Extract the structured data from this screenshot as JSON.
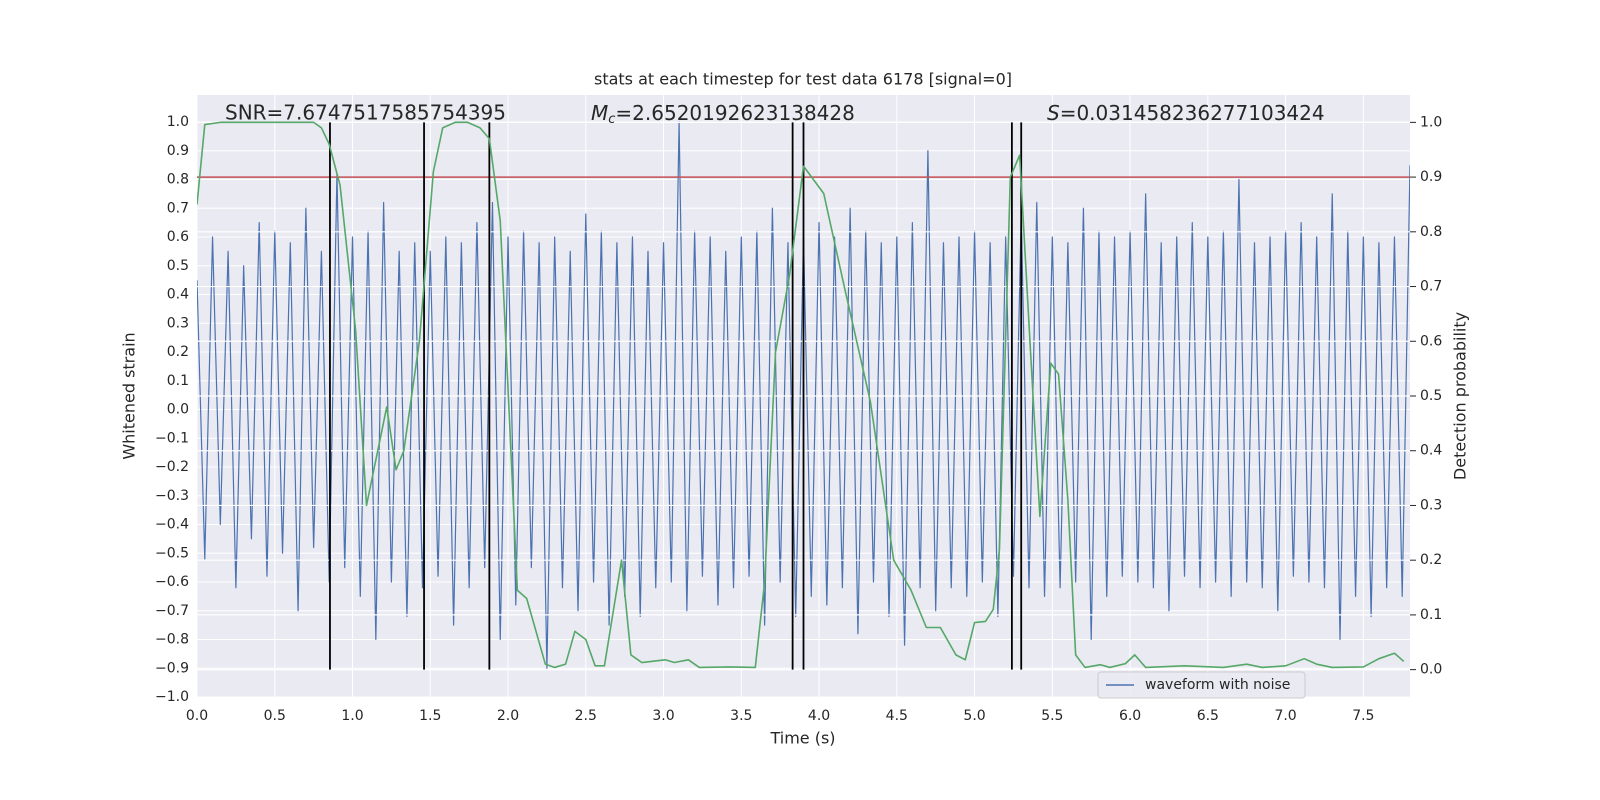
{
  "chart_data": {
    "type": "line",
    "title": "stats at each timestep for test data 6178 [signal=0]",
    "xlabel": "Time (s)",
    "ylabel": "Whitened strain",
    "y2label": "Detection probability",
    "annotations": [
      {
        "text": "SNR=7.6747517585754395"
      },
      {
        "symbol": "M",
        "subscript": "c",
        "text": "=2.6520192623138428"
      },
      {
        "symbol": "S",
        "text": "=0.031458236277103424"
      }
    ],
    "xlim": [
      0,
      7.8
    ],
    "ylim": [
      -1.0,
      1.094
    ],
    "y2lim": [
      -0.05,
      1.05
    ],
    "xticks": [
      {
        "value": 0,
        "label": "0.0"
      },
      {
        "value": 0.5,
        "label": "0.5"
      },
      {
        "value": 1,
        "label": "1.0"
      },
      {
        "value": 1.5,
        "label": "1.5"
      },
      {
        "value": 2,
        "label": "2.0"
      },
      {
        "value": 2.5,
        "label": "2.5"
      },
      {
        "value": 3,
        "label": "3.0"
      },
      {
        "value": 3.5,
        "label": "3.5"
      },
      {
        "value": 4,
        "label": "4.0"
      },
      {
        "value": 4.5,
        "label": "4.5"
      },
      {
        "value": 5,
        "label": "5.0"
      },
      {
        "value": 5.5,
        "label": "5.5"
      },
      {
        "value": 6,
        "label": "6.0"
      },
      {
        "value": 6.5,
        "label": "6.5"
      },
      {
        "value": 7,
        "label": "7.0"
      },
      {
        "value": 7.5,
        "label": "7.5"
      }
    ],
    "yticks": [
      {
        "value": -1,
        "label": "−1.0"
      },
      {
        "value": -0.9,
        "label": "−0.9"
      },
      {
        "value": -0.8,
        "label": "−0.8"
      },
      {
        "value": -0.7,
        "label": "−0.7"
      },
      {
        "value": -0.6,
        "label": "−0.6"
      },
      {
        "value": -0.5,
        "label": "−0.5"
      },
      {
        "value": -0.4,
        "label": "−0.4"
      },
      {
        "value": -0.3,
        "label": "−0.3"
      },
      {
        "value": -0.2,
        "label": "−0.2"
      },
      {
        "value": -0.1,
        "label": "−0.1"
      },
      {
        "value": 0,
        "label": "0.0"
      },
      {
        "value": 0.1,
        "label": "0.1"
      },
      {
        "value": 0.2,
        "label": "0.2"
      },
      {
        "value": 0.3,
        "label": "0.3"
      },
      {
        "value": 0.4,
        "label": "0.4"
      },
      {
        "value": 0.5,
        "label": "0.5"
      },
      {
        "value": 0.6,
        "label": "0.6"
      },
      {
        "value": 0.7,
        "label": "0.7"
      },
      {
        "value": 0.8,
        "label": "0.8"
      },
      {
        "value": 0.9,
        "label": "0.9"
      },
      {
        "value": 1,
        "label": "1.0"
      }
    ],
    "y2ticks": [
      {
        "value": 0,
        "label": "0.0"
      },
      {
        "value": 0.1,
        "label": "0.1"
      },
      {
        "value": 0.2,
        "label": "0.2"
      },
      {
        "value": 0.3,
        "label": "0.3"
      },
      {
        "value": 0.4,
        "label": "0.4"
      },
      {
        "value": 0.5,
        "label": "0.5"
      },
      {
        "value": 0.6,
        "label": "0.6"
      },
      {
        "value": 0.7,
        "label": "0.7"
      },
      {
        "value": 0.8,
        "label": "0.8"
      },
      {
        "value": 0.9,
        "label": "0.9"
      },
      {
        "value": 1,
        "label": "1.0"
      }
    ],
    "grid": true,
    "legend": "lower right",
    "threshold": {
      "value": 0.9,
      "axis": "y2",
      "color": "#c44e52"
    },
    "vlines": {
      "values": [
        0.855,
        1.46,
        1.88,
        3.83,
        3.9,
        5.24,
        5.3
      ],
      "color": "#000000"
    },
    "series": [
      {
        "name": "waveform with noise",
        "color": "#4c72b0",
        "axis": "y",
        "x": [
          0,
          0.05,
          0.1,
          0.15,
          0.2,
          0.25,
          0.3,
          0.35,
          0.4,
          0.45,
          0.5,
          0.55,
          0.6,
          0.65,
          0.7,
          0.75,
          0.8,
          0.85,
          0.9,
          0.95,
          1,
          1.05,
          1.1,
          1.15,
          1.2,
          1.25,
          1.3,
          1.35,
          1.4,
          1.45,
          1.5,
          1.55,
          1.6,
          1.65,
          1.7,
          1.75,
          1.8,
          1.85,
          1.9,
          1.95,
          2,
          2.05,
          2.1,
          2.15,
          2.2,
          2.25,
          2.3,
          2.35,
          2.4,
          2.45,
          2.5,
          2.55,
          2.6,
          2.65,
          2.7,
          2.75,
          2.8,
          2.85,
          2.9,
          2.95,
          3,
          3.05,
          3.1,
          3.15,
          3.2,
          3.25,
          3.3,
          3.35,
          3.4,
          3.45,
          3.5,
          3.55,
          3.6,
          3.65,
          3.7,
          3.75,
          3.8,
          3.85,
          3.9,
          3.95,
          4,
          4.05,
          4.1,
          4.15,
          4.2,
          4.25,
          4.3,
          4.35,
          4.4,
          4.45,
          4.5,
          4.55,
          4.6,
          4.65,
          4.7,
          4.75,
          4.8,
          4.85,
          4.9,
          4.95,
          5,
          5.05,
          5.1,
          5.15,
          5.2,
          5.25,
          5.3,
          5.35,
          5.4,
          5.45,
          5.5,
          5.55,
          5.6,
          5.65,
          5.7,
          5.75,
          5.8,
          5.85,
          5.9,
          5.95,
          6,
          6.05,
          6.1,
          6.15,
          6.2,
          6.25,
          6.3,
          6.35,
          6.4,
          6.45,
          6.5,
          6.55,
          6.6,
          6.65,
          6.7,
          6.75,
          6.8,
          6.85,
          6.9,
          6.95,
          7,
          7.05,
          7.1,
          7.15,
          7.2,
          7.25,
          7.3,
          7.35,
          7.4,
          7.45,
          7.5,
          7.55,
          7.6,
          7.65,
          7.7,
          7.75,
          7.8
        ],
        "values": [
          0.45,
          -0.52,
          0.6,
          -0.4,
          0.55,
          -0.62,
          0.5,
          -0.45,
          0.65,
          -0.58,
          0.62,
          -0.5,
          0.58,
          -0.7,
          0.7,
          -0.48,
          0.55,
          -0.6,
          0.82,
          -0.55,
          0.6,
          -0.65,
          0.62,
          -0.8,
          0.72,
          -0.6,
          0.55,
          -0.72,
          0.58,
          -0.62,
          0.55,
          -0.58,
          0.6,
          -0.75,
          0.58,
          -0.62,
          0.65,
          -0.55,
          0.72,
          -0.8,
          0.6,
          -0.68,
          0.62,
          -0.55,
          0.58,
          -0.9,
          0.6,
          -0.62,
          0.55,
          -0.7,
          0.68,
          -0.6,
          0.62,
          -0.75,
          0.58,
          -0.65,
          0.6,
          -0.72,
          0.55,
          -0.62,
          0.58,
          -0.6,
          1.0,
          -0.7,
          0.62,
          -0.58,
          0.6,
          -0.68,
          0.55,
          -0.62,
          0.6,
          -0.58,
          0.62,
          -0.75,
          0.7,
          -0.6,
          0.58,
          -0.72,
          0.6,
          -0.65,
          0.65,
          -0.68,
          0.6,
          -0.62,
          0.7,
          -0.78,
          0.62,
          -0.6,
          0.58,
          -0.72,
          0.6,
          -0.82,
          0.65,
          -0.62,
          0.9,
          -0.7,
          0.58,
          -0.62,
          0.6,
          -0.65,
          0.62,
          -0.6,
          0.58,
          -0.72,
          0.6,
          -0.58,
          0.68,
          -0.62,
          0.72,
          -0.65,
          0.6,
          -0.62,
          0.58,
          -0.6,
          0.7,
          -0.8,
          0.62,
          -0.65,
          0.6,
          -0.58,
          0.62,
          -0.6,
          0.75,
          -0.62,
          0.58,
          -0.7,
          0.6,
          -0.58,
          0.65,
          -0.62,
          0.6,
          -0.6,
          0.62,
          -0.65,
          0.8,
          -0.6,
          0.58,
          -0.62,
          0.6,
          -0.7,
          0.62,
          -0.58,
          0.65,
          -0.6,
          0.6,
          -0.62,
          0.75,
          -0.8,
          0.62,
          -0.65,
          0.6,
          -0.72,
          0.58,
          -0.62,
          0.6,
          -0.65,
          0.85
        ]
      },
      {
        "color": "#55a868",
        "axis": "y2",
        "x": [
          0,
          0.05,
          0.15,
          0.75,
          0.8,
          0.85,
          0.92,
          1.02,
          1.09,
          1.22,
          1.28,
          1.33,
          1.43,
          1.52,
          1.58,
          1.66,
          1.74,
          1.82,
          1.88,
          1.95,
          2.06,
          2.12,
          2.24,
          2.3,
          2.37,
          2.43,
          2.5,
          2.56,
          2.62,
          2.73,
          2.79,
          2.86,
          3.01,
          3.07,
          3.16,
          3.23,
          3.43,
          3.59,
          3.65,
          3.72,
          3.81,
          3.9,
          4.03,
          4.17,
          4.33,
          4.48,
          4.59,
          4.69,
          4.78,
          4.88,
          4.94,
          5.0,
          5.07,
          5.12,
          5.16,
          5.23,
          5.29,
          5.36,
          5.42,
          5.49,
          5.54,
          5.6,
          5.65,
          5.71,
          5.81,
          5.87,
          5.97,
          6.03,
          6.1,
          6.35,
          6.6,
          6.75,
          6.85,
          7.0,
          7.12,
          7.2,
          7.3,
          7.5,
          7.6,
          7.7,
          7.76
        ],
        "values": [
          0.85,
          0.996,
          1.0,
          1.0,
          0.99,
          0.96,
          0.885,
          0.62,
          0.3,
          0.48,
          0.365,
          0.4,
          0.6,
          0.91,
          0.99,
          1.0,
          1.0,
          0.99,
          0.97,
          0.82,
          0.145,
          0.13,
          0.01,
          0.004,
          0.01,
          0.07,
          0.055,
          0.007,
          0.007,
          0.2,
          0.027,
          0.013,
          0.018,
          0.013,
          0.018,
          0.004,
          0.005,
          0.004,
          0.16,
          0.58,
          0.72,
          0.92,
          0.87,
          0.69,
          0.49,
          0.2,
          0.146,
          0.077,
          0.077,
          0.027,
          0.018,
          0.086,
          0.088,
          0.11,
          0.22,
          0.9,
          0.94,
          0.58,
          0.28,
          0.56,
          0.54,
          0.31,
          0.027,
          0.004,
          0.009,
          0.004,
          0.011,
          0.027,
          0.004,
          0.007,
          0.004,
          0.01,
          0.004,
          0.007,
          0.02,
          0.01,
          0.004,
          0.005,
          0.02,
          0.03,
          0.015
        ]
      }
    ]
  }
}
